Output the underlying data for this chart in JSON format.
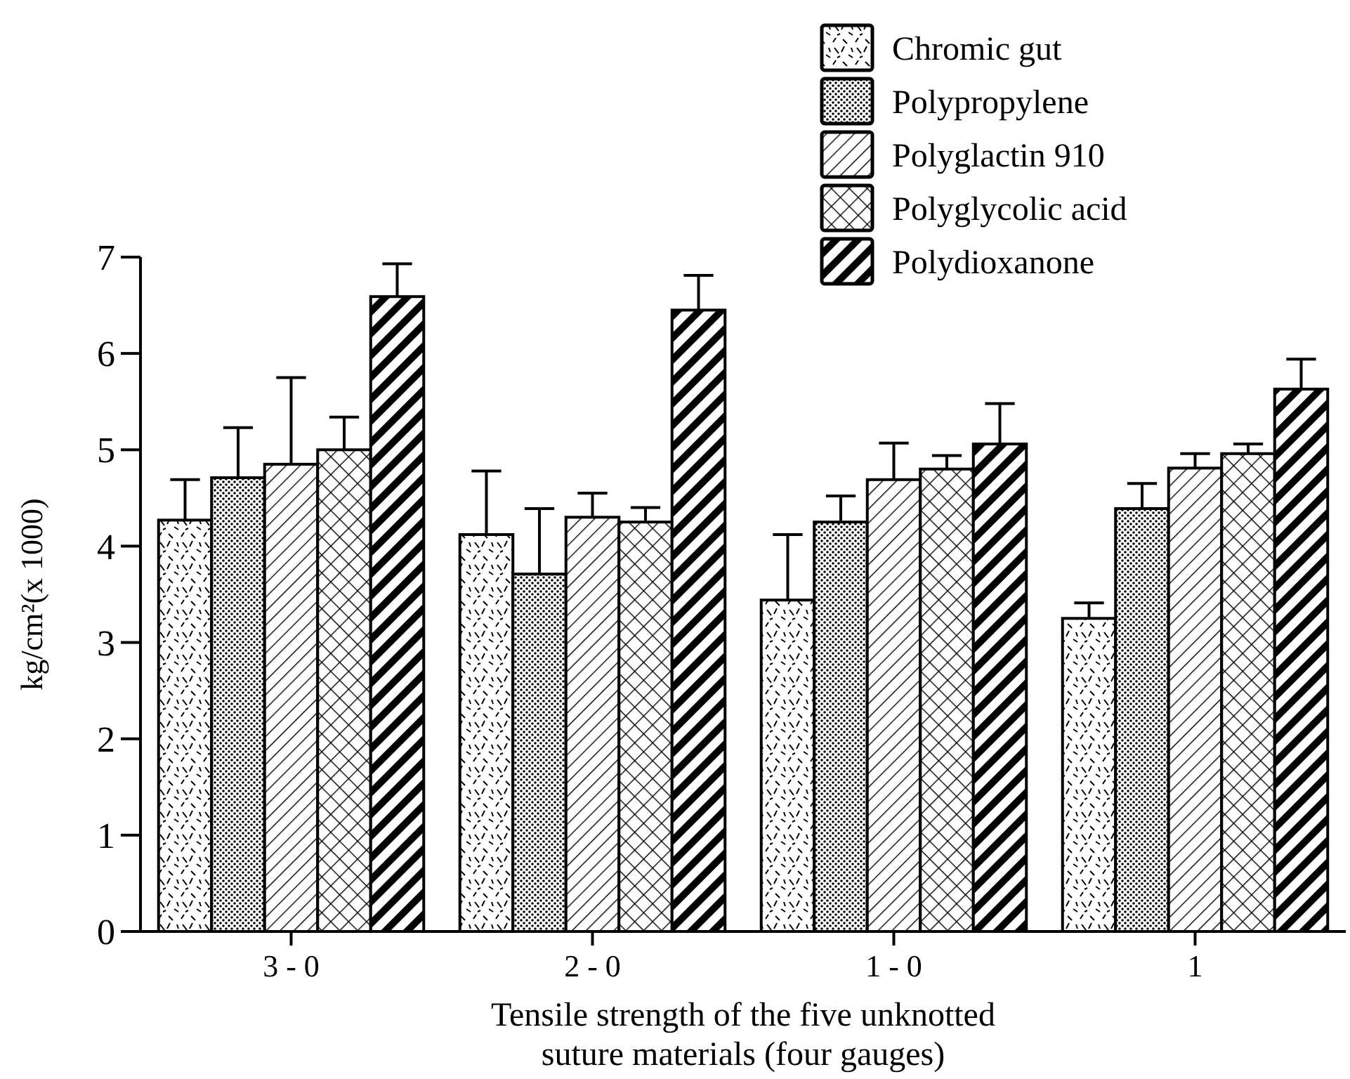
{
  "chart_data": {
    "type": "bar",
    "xlabel": "Tensile strength of the five unknotted\nsuture materials (four gauges)",
    "ylabel": "kg/cm²(x 1000)",
    "categories": [
      "3 - 0",
      "2 - 0",
      "1 - 0",
      "1"
    ],
    "series": [
      {
        "name": "Chromic gut",
        "color": "#000000",
        "values": [
          4.27,
          4.12,
          3.44,
          3.25
        ],
        "errors": [
          [
            4.27,
            4.69
          ],
          [
            4.12,
            4.78
          ],
          [
            3.44,
            4.12
          ],
          [
            3.25,
            3.41
          ]
        ]
      },
      {
        "name": "Polypropylene",
        "color": "#000000",
        "values": [
          4.71,
          3.71,
          4.25,
          4.39
        ],
        "errors": [
          [
            4.71,
            5.23
          ],
          [
            3.71,
            4.39
          ],
          [
            4.25,
            4.52
          ],
          [
            4.39,
            4.65
          ]
        ]
      },
      {
        "name": "Polyglactin 910",
        "color": "#000000",
        "values": [
          4.85,
          4.3,
          4.69,
          4.81
        ],
        "errors": [
          [
            4.85,
            5.75
          ],
          [
            4.3,
            4.55
          ],
          [
            4.69,
            5.07
          ],
          [
            4.81,
            4.96
          ]
        ]
      },
      {
        "name": "Polyglycolic acid",
        "color": "#000000",
        "values": [
          5.0,
          4.25,
          4.8,
          4.96
        ],
        "errors": [
          [
            5.0,
            5.34
          ],
          [
            4.25,
            4.4
          ],
          [
            4.8,
            4.94
          ],
          [
            4.96,
            5.06
          ]
        ]
      },
      {
        "name": "Polydioxanone",
        "color": "#000000",
        "values": [
          6.59,
          6.45,
          5.06,
          5.63
        ],
        "errors": [
          [
            6.59,
            6.93
          ],
          [
            6.45,
            6.81
          ],
          [
            5.06,
            5.48
          ],
          [
            5.63,
            5.94
          ]
        ]
      }
    ],
    "ylim": [
      0,
      7
    ],
    "yticks": [
      0,
      1,
      2,
      3,
      4,
      5,
      6,
      7
    ],
    "legend": "top right"
  }
}
